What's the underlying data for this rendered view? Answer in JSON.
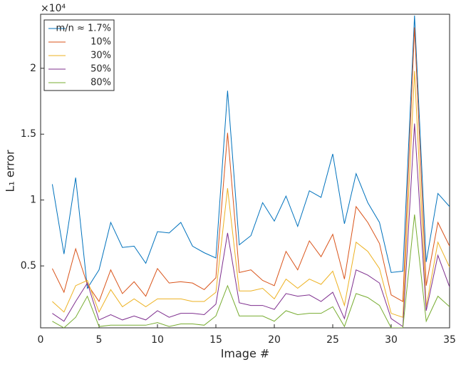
{
  "chart_data": {
    "type": "line",
    "y_scale_label": "×10⁴",
    "xlabel": "Image #",
    "ylabel": "L₁ error",
    "x": [
      1,
      2,
      3,
      4,
      5,
      6,
      7,
      8,
      9,
      10,
      11,
      12,
      13,
      14,
      15,
      16,
      17,
      18,
      19,
      20,
      21,
      22,
      23,
      24,
      25,
      26,
      27,
      28,
      29,
      30,
      31,
      32,
      33,
      34,
      35
    ],
    "xlim": [
      0,
      35
    ],
    "xticks": [
      0,
      5,
      10,
      15,
      20,
      25,
      30,
      35
    ],
    "ylim": [
      0.03,
      2.41
    ],
    "yticks": [
      0.5,
      1,
      1.5,
      2
    ],
    "legend_position": "upper-left",
    "series": [
      {
        "name": "m/n ≈ 1.7%",
        "color": "#0072bd",
        "values": [
          1.12,
          0.59,
          1.17,
          0.33,
          0.47,
          0.83,
          0.64,
          0.65,
          0.52,
          0.76,
          0.75,
          0.83,
          0.65,
          0.6,
          0.56,
          1.83,
          0.66,
          0.73,
          0.98,
          0.84,
          1.03,
          0.8,
          1.07,
          1.02,
          1.35,
          0.82,
          1.2,
          0.98,
          0.83,
          0.45,
          0.46,
          2.4,
          0.53,
          1.05,
          0.95
        ]
      },
      {
        "name": "10%",
        "color": "#d95319",
        "values": [
          0.48,
          0.3,
          0.63,
          0.36,
          0.23,
          0.47,
          0.29,
          0.38,
          0.27,
          0.48,
          0.37,
          0.38,
          0.37,
          0.32,
          0.41,
          1.51,
          0.45,
          0.47,
          0.39,
          0.35,
          0.61,
          0.47,
          0.69,
          0.57,
          0.74,
          0.4,
          0.95,
          0.83,
          0.67,
          0.28,
          0.23,
          2.31,
          0.35,
          0.83,
          0.65
        ]
      },
      {
        "name": "30%",
        "color": "#edb120",
        "values": [
          0.23,
          0.15,
          0.35,
          0.39,
          0.15,
          0.32,
          0.19,
          0.25,
          0.19,
          0.25,
          0.25,
          0.25,
          0.23,
          0.23,
          0.3,
          1.09,
          0.31,
          0.31,
          0.33,
          0.25,
          0.4,
          0.33,
          0.4,
          0.36,
          0.46,
          0.2,
          0.68,
          0.61,
          0.48,
          0.14,
          0.11,
          1.98,
          0.19,
          0.68,
          0.49
        ]
      },
      {
        "name": "50%",
        "color": "#7e2f8e",
        "values": [
          0.14,
          0.08,
          0.23,
          0.37,
          0.09,
          0.13,
          0.09,
          0.12,
          0.09,
          0.16,
          0.11,
          0.14,
          0.14,
          0.13,
          0.21,
          0.75,
          0.22,
          0.2,
          0.2,
          0.17,
          0.29,
          0.27,
          0.28,
          0.23,
          0.3,
          0.1,
          0.47,
          0.43,
          0.37,
          0.1,
          0.04,
          1.58,
          0.16,
          0.58,
          0.34
        ]
      },
      {
        "name": "80%",
        "color": "#77ac30",
        "values": [
          0.08,
          0.03,
          0.11,
          0.27,
          0.04,
          0.05,
          0.05,
          0.05,
          0.05,
          0.07,
          0.04,
          0.06,
          0.06,
          0.05,
          0.12,
          0.35,
          0.12,
          0.12,
          0.12,
          0.08,
          0.16,
          0.13,
          0.14,
          0.14,
          0.19,
          0.04,
          0.29,
          0.26,
          0.2,
          0.03,
          0.03,
          0.89,
          0.08,
          0.27,
          0.19
        ]
      }
    ]
  }
}
